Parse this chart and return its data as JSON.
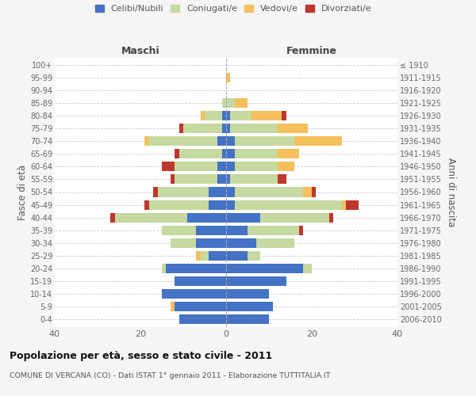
{
  "age_groups": [
    "0-4",
    "5-9",
    "10-14",
    "15-19",
    "20-24",
    "25-29",
    "30-34",
    "35-39",
    "40-44",
    "45-49",
    "50-54",
    "55-59",
    "60-64",
    "65-69",
    "70-74",
    "75-79",
    "80-84",
    "85-89",
    "90-94",
    "95-99",
    "100+"
  ],
  "birth_years": [
    "2006-2010",
    "2001-2005",
    "1996-2000",
    "1991-1995",
    "1986-1990",
    "1981-1985",
    "1976-1980",
    "1971-1975",
    "1966-1970",
    "1961-1965",
    "1956-1960",
    "1951-1955",
    "1946-1950",
    "1941-1945",
    "1936-1940",
    "1931-1935",
    "1926-1930",
    "1921-1925",
    "1916-1920",
    "1911-1915",
    "≤ 1910"
  ],
  "colors": {
    "celibi": "#4472c4",
    "coniugati": "#c5d9a0",
    "vedovi": "#f5bf5b",
    "divorziati": "#c0362c"
  },
  "males": {
    "celibi": [
      11,
      12,
      15,
      12,
      14,
      4,
      7,
      7,
      9,
      4,
      4,
      2,
      2,
      1,
      2,
      1,
      1,
      0,
      0,
      0,
      0
    ],
    "coniugati": [
      0,
      0,
      0,
      0,
      1,
      2,
      6,
      8,
      17,
      14,
      12,
      10,
      10,
      10,
      16,
      9,
      4,
      1,
      0,
      0,
      0
    ],
    "vedovi": [
      0,
      1,
      0,
      0,
      0,
      1,
      0,
      0,
      0,
      0,
      0,
      0,
      0,
      0,
      1,
      0,
      1,
      0,
      0,
      0,
      0
    ],
    "divorziati": [
      0,
      0,
      0,
      0,
      0,
      0,
      0,
      0,
      1,
      1,
      1,
      1,
      3,
      1,
      0,
      1,
      0,
      0,
      0,
      0,
      0
    ]
  },
  "females": {
    "celibi": [
      10,
      11,
      10,
      14,
      18,
      5,
      7,
      5,
      8,
      2,
      2,
      1,
      2,
      2,
      2,
      1,
      1,
      0,
      0,
      0,
      0
    ],
    "coniugati": [
      0,
      0,
      0,
      0,
      2,
      3,
      9,
      12,
      16,
      25,
      16,
      11,
      10,
      10,
      14,
      11,
      5,
      2,
      0,
      0,
      0
    ],
    "vedovi": [
      0,
      0,
      0,
      0,
      0,
      0,
      0,
      0,
      0,
      1,
      2,
      0,
      4,
      5,
      11,
      7,
      7,
      3,
      0,
      1,
      0
    ],
    "divorziati": [
      0,
      0,
      0,
      0,
      0,
      0,
      0,
      1,
      1,
      3,
      1,
      2,
      0,
      0,
      0,
      0,
      1,
      0,
      0,
      0,
      0
    ]
  },
  "xlim": 40,
  "title": "Popolazione per età, sesso e stato civile - 2011",
  "subtitle": "COMUNE DI VERCANA (CO) - Dati ISTAT 1° gennaio 2011 - Elaborazione TUTTITALIA.IT",
  "ylabel_left": "Fasce di età",
  "ylabel_right": "Anni di nascita",
  "header_left": "Maschi",
  "header_right": "Femmine",
  "legend_labels": [
    "Celibi/Nubili",
    "Coniugati/e",
    "Vedovi/e",
    "Divorziati/e"
  ],
  "bg_color": "#f5f5f5",
  "plot_bg": "#ffffff"
}
